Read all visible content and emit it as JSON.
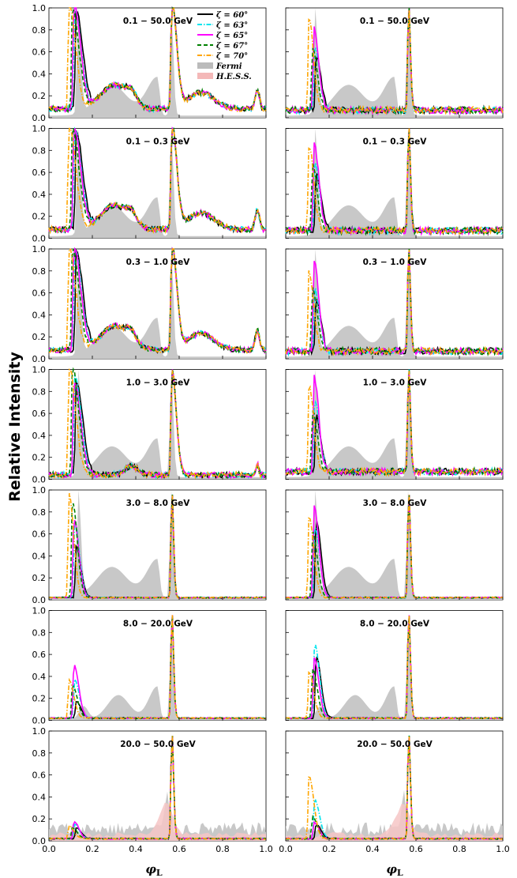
{
  "figure": {
    "ylabel": "Relative Intensity",
    "xlabel": "φ",
    "xlabel_sub": "L"
  },
  "chart_data": {
    "type": "line",
    "description_of_layout": "7 rows x 2 columns of pulse profile panels",
    "xlim": [
      0.0,
      1.0
    ],
    "ylim": [
      0.0,
      1.0
    ],
    "x_ticks": [
      "0.0",
      "0.2",
      "0.4",
      "0.6",
      "0.8",
      "1.0"
    ],
    "y_ticks": [
      "0.0",
      "0.2",
      "0.4",
      "0.6",
      "0.8",
      "1.0"
    ],
    "legend": [
      {
        "key": "z60",
        "label": "ζ = 60°",
        "color": "#000000",
        "style": "solid"
      },
      {
        "key": "z63",
        "label": "ζ = 63°",
        "color": "#00e5ee",
        "style": "dashdot"
      },
      {
        "key": "z65",
        "label": "ζ = 65°",
        "color": "#ff00ff",
        "style": "solid"
      },
      {
        "key": "z67",
        "label": "ζ = 67°",
        "color": "#008000",
        "style": "dashed"
      },
      {
        "key": "z70",
        "label": "ζ = 70°",
        "color": "#ffa500",
        "style": "dashdot"
      },
      {
        "key": "fermi",
        "label": "Fermi",
        "color": "#bbbbbb",
        "style": "fill"
      },
      {
        "key": "hess",
        "label": "H.E.S.S.",
        "color": "#f4b8b8",
        "style": "fill"
      }
    ],
    "rows": [
      {
        "energy": "0.1 − 50.0 GeV",
        "fermi": "full",
        "hess": false,
        "left_heights": [
          0.9,
          0.92,
          0.95,
          0.93,
          0.97
        ],
        "right_heights": [
          0.5,
          0.57,
          0.76,
          0.55,
          0.82
        ]
      },
      {
        "energy": "0.1 − 0.3 GeV",
        "fermi": "full",
        "hess": false,
        "left_heights": [
          0.9,
          0.93,
          0.95,
          0.93,
          0.98
        ],
        "right_heights": [
          0.5,
          0.62,
          0.8,
          0.6,
          0.78
        ]
      },
      {
        "energy": "0.3 − 1.0 GeV",
        "fermi": "full",
        "hess": false,
        "left_heights": [
          0.9,
          0.94,
          0.95,
          0.93,
          0.97
        ],
        "right_heights": [
          0.46,
          0.56,
          0.84,
          0.58,
          0.72
        ]
      },
      {
        "energy": "1.0 − 3.0 GeV",
        "fermi": "full",
        "hess": false,
        "left_heights": [
          0.85,
          0.9,
          0.86,
          0.97,
          1.0
        ],
        "right_heights": [
          0.5,
          0.65,
          0.87,
          0.55,
          0.79
        ]
      },
      {
        "energy": "3.0 − 8.0 GeV",
        "fermi": "full",
        "hess": false,
        "left_heights": [
          0.47,
          0.7,
          0.72,
          0.88,
          0.95
        ],
        "right_heights": [
          0.7,
          0.65,
          0.84,
          0.6,
          0.74
        ]
      },
      {
        "energy": "8.0 − 20.0 GeV",
        "fermi": "mid",
        "hess": false,
        "left_heights": [
          0.15,
          0.35,
          0.49,
          0.3,
          0.35
        ],
        "right_heights": [
          0.57,
          0.68,
          0.55,
          0.45,
          0.42
        ]
      },
      {
        "energy": "20.0 − 50.0 GeV",
        "fermi": "noisy",
        "hess": true,
        "left_heights": [
          0.1,
          0.13,
          0.16,
          0.1,
          0.12
        ],
        "right_heights": [
          0.13,
          0.36,
          0.15,
          0.2,
          0.57
        ]
      }
    ]
  }
}
